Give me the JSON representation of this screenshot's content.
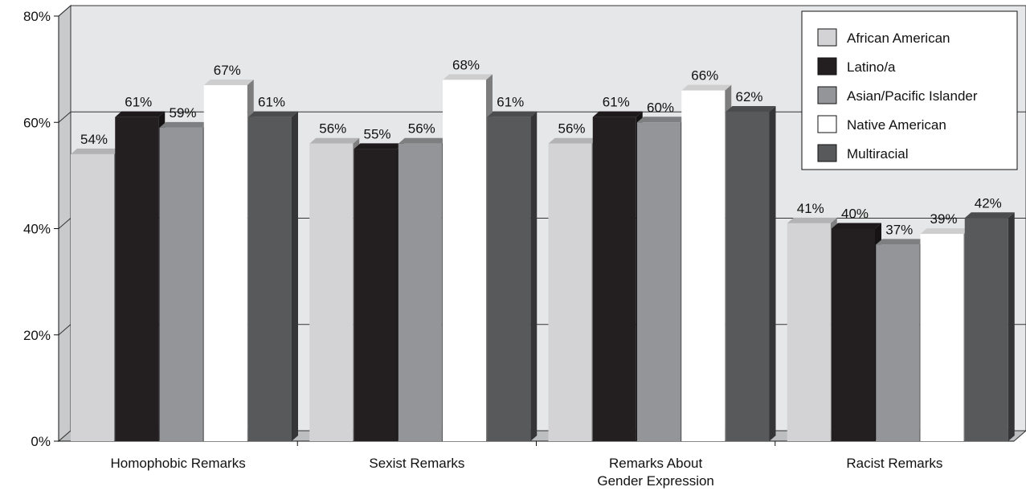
{
  "chart_data": {
    "type": "bar",
    "title": "",
    "xlabel": "",
    "ylabel": "",
    "ylim": [
      0,
      80
    ],
    "yticks": [
      "0%",
      "20%",
      "40%",
      "60%",
      "80%"
    ],
    "ytick_values": [
      0,
      20,
      40,
      60,
      80
    ],
    "categories": [
      [
        "Homophobic Remarks"
      ],
      [
        "Sexist Remarks"
      ],
      [
        "Remarks About",
        "Gender Expression"
      ],
      [
        "Racist Remarks"
      ]
    ],
    "series": [
      {
        "name": "African American",
        "color": "#d3d3d5",
        "values": [
          54,
          56,
          56,
          41
        ],
        "labels": [
          "54%",
          "56%",
          "56%",
          "41%"
        ]
      },
      {
        "name": "Latino/a",
        "color": "#231f20",
        "values": [
          61,
          55,
          61,
          40
        ],
        "labels": [
          "61%",
          "55%",
          "61%",
          "40%"
        ]
      },
      {
        "name": "Asian/Pacific Islander",
        "color": "#939598",
        "values": [
          59,
          56,
          60,
          37
        ],
        "labels": [
          "59%",
          "56%",
          "60%",
          "37%"
        ]
      },
      {
        "name": "Native American",
        "color": "#ffffff",
        "values": [
          67,
          68,
          66,
          39
        ],
        "labels": [
          "67%",
          "68%",
          "66%",
          "39%"
        ]
      },
      {
        "name": "Multiracial",
        "color": "#58595b",
        "values": [
          61,
          61,
          62,
          42
        ],
        "labels": [
          "61%",
          "61%",
          "62%",
          "42%"
        ]
      }
    ],
    "grid": true,
    "legend_position": "top-right",
    "style": "3d-bars",
    "background_color": "#e6e7e8"
  }
}
